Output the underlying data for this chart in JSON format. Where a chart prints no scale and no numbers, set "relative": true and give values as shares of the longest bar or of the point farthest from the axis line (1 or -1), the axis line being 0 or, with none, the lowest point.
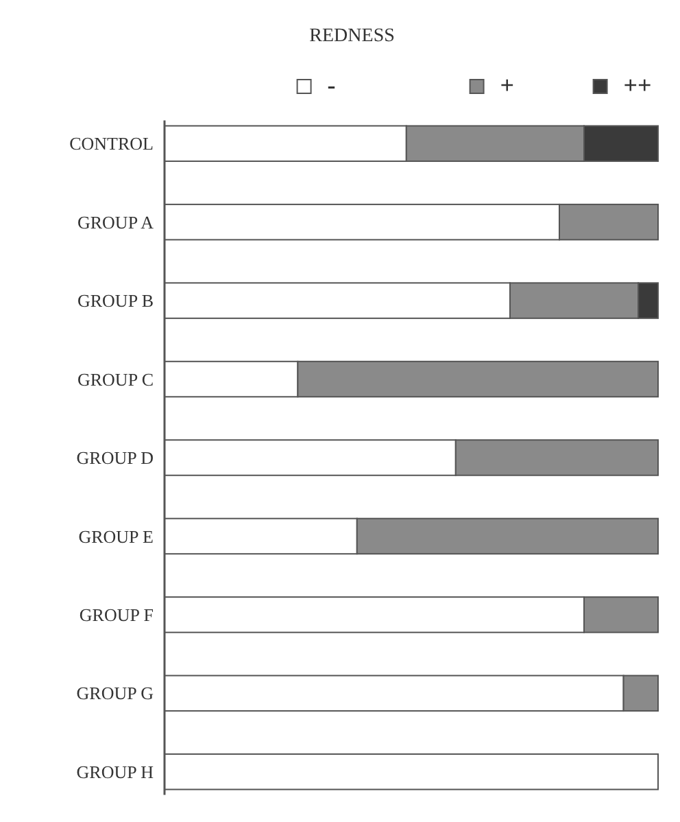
{
  "chart_data": {
    "type": "bar",
    "orientation": "horizontal",
    "stacked": true,
    "relative": true,
    "title": "REDNESS",
    "legend": "top",
    "categories": [
      "CONTROL",
      "GROUP A",
      "GROUP B",
      "GROUP C",
      "GROUP D",
      "GROUP E",
      "GROUP F",
      "GROUP G",
      "GROUP H"
    ],
    "series": [
      {
        "name": "-",
        "color": "#ffffff",
        "values": [
          0.49,
          0.8,
          0.7,
          0.27,
          0.59,
          0.39,
          0.85,
          0.93,
          1
        ]
      },
      {
        "name": "+",
        "color": "#8a8a8a",
        "values": [
          0.36,
          0.2,
          0.26,
          0.73,
          0.41,
          0.61,
          0.15,
          0.07,
          0
        ]
      },
      {
        "name": "++",
        "color": "#3a3a3a",
        "values": [
          0.15,
          0,
          0.04,
          0,
          0,
          0,
          0,
          0,
          0
        ]
      }
    ]
  }
}
